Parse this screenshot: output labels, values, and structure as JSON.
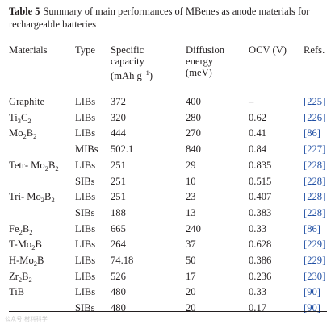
{
  "caption": {
    "label": "Table 5",
    "text": "Summary of main performances of MBenes as anode materials for rechargeable batteries"
  },
  "headers": {
    "materials": "Materials",
    "type": "Type",
    "capacity_1": "Specific",
    "capacity_2": "capacity",
    "capacity_3_pre": "(mAh g",
    "capacity_3_sup": "−1",
    "capacity_3_post": ")",
    "diffusion_1": "Diffusion",
    "diffusion_2": "energy",
    "diffusion_3": "(meV)",
    "ocv": "OCV (V)",
    "refs": "Refs."
  },
  "rows": [
    {
      "material": [
        {
          "t": "Graphite"
        }
      ],
      "type": "LIBs",
      "capacity": "372",
      "diffusion": "400",
      "ocv": "–",
      "ref": "[225]"
    },
    {
      "material": [
        {
          "t": "Ti"
        },
        {
          "t": "3",
          "sub": true
        },
        {
          "t": "C"
        },
        {
          "t": "2",
          "sub": true
        }
      ],
      "type": "LIBs",
      "capacity": "320",
      "diffusion": "280",
      "ocv": "0.62",
      "ref": "[226]"
    },
    {
      "material": [
        {
          "t": "Mo"
        },
        {
          "t": "2",
          "sub": true
        },
        {
          "t": "B"
        },
        {
          "t": "2",
          "sub": true
        }
      ],
      "type": "LIBs",
      "capacity": "444",
      "diffusion": "270",
      "ocv": "0.41",
      "ref": "[86]"
    },
    {
      "material": [],
      "type": "MIBs",
      "capacity": "502.1",
      "diffusion": "840",
      "ocv": "0.84",
      "ref": "[227]"
    },
    {
      "material": [
        {
          "t": "Tetr- Mo"
        },
        {
          "t": "2",
          "sub": true
        },
        {
          "t": "B"
        },
        {
          "t": "2",
          "sub": true
        }
      ],
      "type": "LIBs",
      "capacity": "251",
      "diffusion": "29",
      "ocv": "0.835",
      "ref": "[228]"
    },
    {
      "material": [],
      "type": "SIBs",
      "capacity": "251",
      "diffusion": "10",
      "ocv": "0.515",
      "ref": "[228]"
    },
    {
      "material": [
        {
          "t": "Tri- Mo"
        },
        {
          "t": "2",
          "sub": true
        },
        {
          "t": "B"
        },
        {
          "t": "2",
          "sub": true
        }
      ],
      "type": "LIBs",
      "capacity": "251",
      "diffusion": "23",
      "ocv": "0.407",
      "ref": "[228]"
    },
    {
      "material": [],
      "type": "SIBs",
      "capacity": "188",
      "diffusion": "13",
      "ocv": "0.383",
      "ref": "[228]"
    },
    {
      "material": [
        {
          "t": "Fe"
        },
        {
          "t": "2",
          "sub": true
        },
        {
          "t": "B"
        },
        {
          "t": "2",
          "sub": true
        }
      ],
      "type": "LIBs",
      "capacity": "665",
      "diffusion": "240",
      "ocv": "0.33",
      "ref": "[86]"
    },
    {
      "material": [
        {
          "t": "T-Mo"
        },
        {
          "t": "2",
          "sub": true
        },
        {
          "t": "B"
        }
      ],
      "type": "LIBs",
      "capacity": "264",
      "diffusion": "37",
      "ocv": "0.628",
      "ref": "[229]"
    },
    {
      "material": [
        {
          "t": "H-Mo"
        },
        {
          "t": "2",
          "sub": true
        },
        {
          "t": "B"
        }
      ],
      "type": "LIBs",
      "capacity": "74.18",
      "diffusion": "50",
      "ocv": "0.386",
      "ref": "[229]"
    },
    {
      "material": [
        {
          "t": "Zr"
        },
        {
          "t": "2",
          "sub": true
        },
        {
          "t": "B"
        },
        {
          "t": "2",
          "sub": true
        }
      ],
      "type": "LIBs",
      "capacity": "526",
      "diffusion": "17",
      "ocv": "0.236",
      "ref": "[230]"
    },
    {
      "material": [
        {
          "t": "TiB"
        }
      ],
      "type": "LIBs",
      "capacity": "480",
      "diffusion": "20",
      "ocv": "0.33",
      "ref": "[90]"
    },
    {
      "material": [],
      "type": "SIBs",
      "capacity": "480",
      "diffusion": "20",
      "ocv": "0.17",
      "ref": "[90]"
    }
  ],
  "colors": {
    "text": "#231f20",
    "ref_link": "#1f4ea3"
  },
  "watermark": "公众号·材料科学"
}
